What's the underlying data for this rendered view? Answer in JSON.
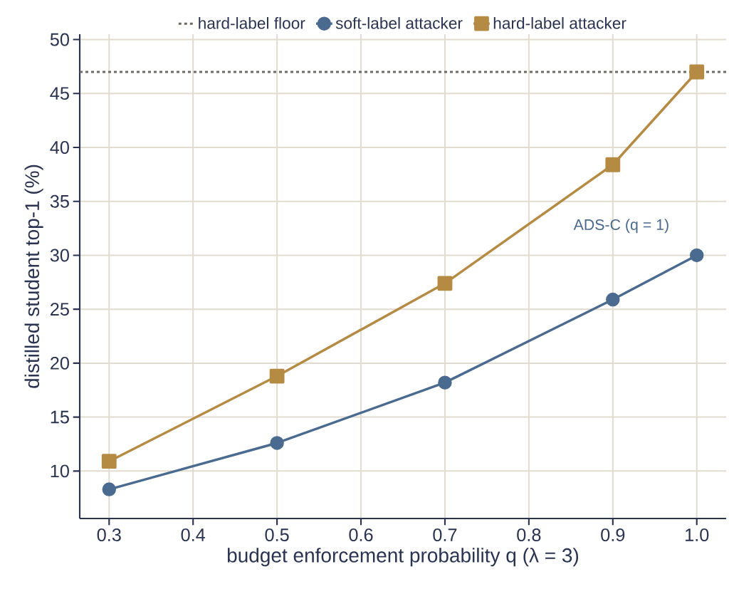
{
  "chart_data": {
    "type": "line",
    "x": [
      0.3,
      0.5,
      0.7,
      0.9,
      1.0
    ],
    "xlabel": "budget enforcement probability q (λ = 3)",
    "ylabel": "distilled student top-1 (%)",
    "series": [
      {
        "name": "soft-label attacker",
        "color": "#4a6a8f",
        "marker": "circle",
        "values": [
          8.3,
          12.6,
          18.2,
          25.9,
          30.0
        ]
      },
      {
        "name": "hard-label attacker",
        "color": "#b58b44",
        "marker": "square",
        "values": [
          10.9,
          18.8,
          27.4,
          38.4,
          47.0
        ]
      }
    ],
    "ref_lines": [
      {
        "axis": "y",
        "value": 47.0,
        "label": "hard-label floor",
        "color": "#6e6a66",
        "line_style": "dashed"
      }
    ],
    "annotations": [
      "ADS-C (q = 1)"
    ],
    "xlim": [
      0.265,
      1.035
    ],
    "ylim": [
      5.6,
      50.5
    ],
    "xticks": [
      0.3,
      0.4,
      0.5,
      0.6,
      0.7,
      0.8,
      0.9,
      {
        "value": 1.0,
        "label": "1.0"
      }
    ],
    "yticks": [
      10,
      15,
      20,
      25,
      30,
      35,
      40,
      45,
      50
    ],
    "grid": true,
    "legend": "top",
    "line_style": "solid"
  }
}
